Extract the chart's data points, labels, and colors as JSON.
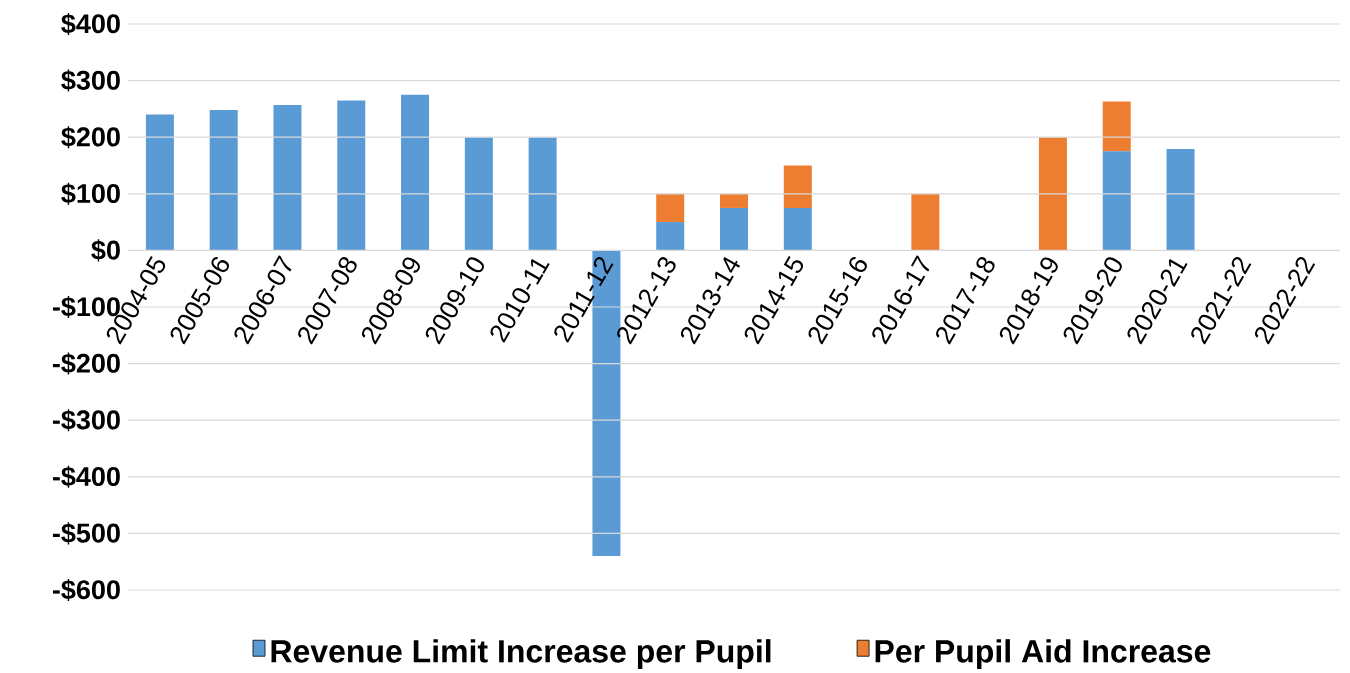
{
  "chart_data": {
    "type": "bar",
    "stacked": true,
    "categories": [
      "2004-05",
      "2005-06",
      "2006-07",
      "2007-08",
      "2008-09",
      "2009-10",
      "2010-11",
      "2011-12",
      "2012-13",
      "2013-14",
      "2014-15",
      "2015-16",
      "2016-17",
      "2017-18",
      "2018-19",
      "2019-20",
      "2020-21",
      "2021-22",
      "2022-22"
    ],
    "series": [
      {
        "name": "Revenue Limit Increase per Pupil",
        "color": "#5b9bd5",
        "values": [
          240,
          248,
          257,
          265,
          275,
          200,
          200,
          -540,
          50,
          75,
          75,
          null,
          null,
          null,
          null,
          175,
          179,
          null,
          null
        ]
      },
      {
        "name": "Per Pupil Aid Increase",
        "color": "#ed7d31",
        "values": [
          null,
          null,
          null,
          null,
          null,
          null,
          null,
          null,
          50,
          25,
          75,
          null,
          100,
          null,
          200,
          88,
          null,
          null,
          null
        ]
      }
    ],
    "ylim": [
      -600,
      400
    ],
    "yticks": [
      {
        "value": -600,
        "label": "-$600"
      },
      {
        "value": -500,
        "label": "-$500"
      },
      {
        "value": -400,
        "label": "-$400"
      },
      {
        "value": -300,
        "label": "-$300"
      },
      {
        "value": -200,
        "label": "-$200"
      },
      {
        "value": -100,
        "label": "-$100"
      },
      {
        "value": 0,
        "label": "$0"
      },
      {
        "value": 100,
        "label": "$100"
      },
      {
        "value": 200,
        "label": "$200"
      },
      {
        "value": 300,
        "label": "$300"
      },
      {
        "value": 400,
        "label": "$400"
      }
    ],
    "grid": "y",
    "legend": "bottom"
  }
}
